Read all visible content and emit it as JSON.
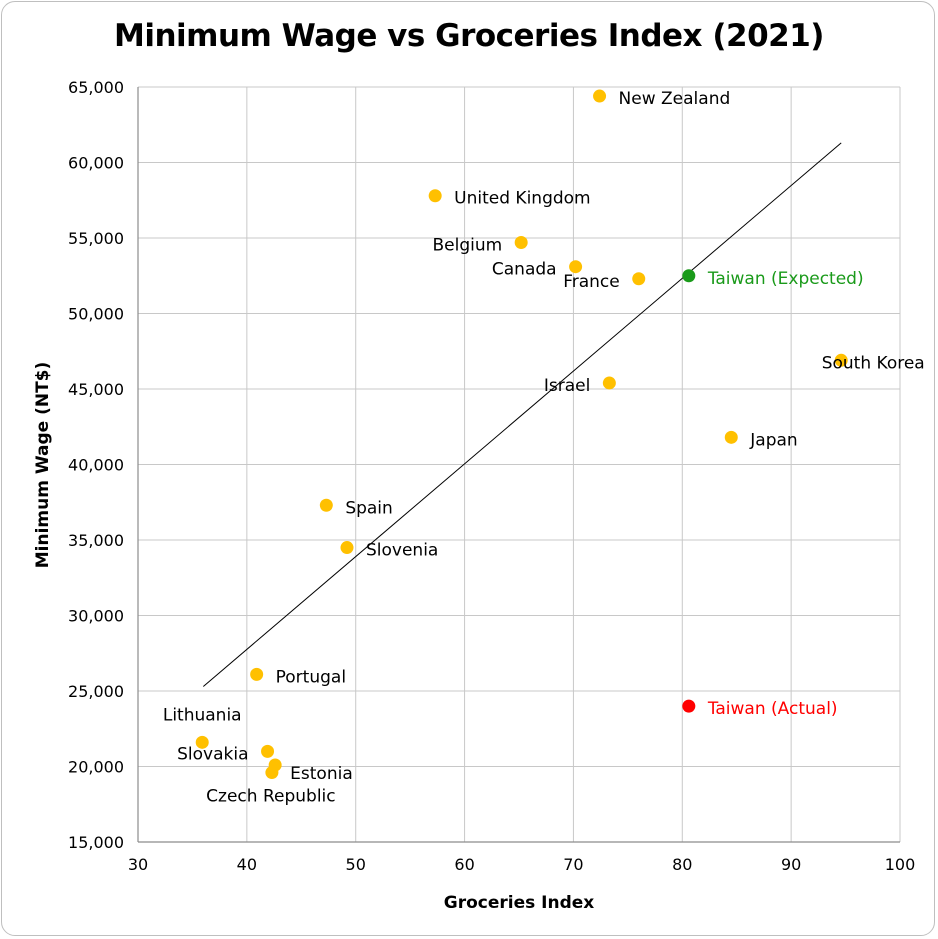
{
  "chart_data": {
    "type": "scatter",
    "title": "Minimum Wage vs Groceries Index (2021)",
    "xlabel": "Groceries Index",
    "ylabel": "Minimum Wage (NT$)",
    "xlim": [
      30,
      100
    ],
    "ylim": [
      15000,
      65000
    ],
    "xticks": [
      30,
      40,
      50,
      60,
      70,
      80,
      90,
      100
    ],
    "yticks": [
      15000,
      20000,
      25000,
      30000,
      35000,
      40000,
      45000,
      50000,
      55000,
      60000,
      65000
    ],
    "ytick_labels": [
      "15,000",
      "20,000",
      "25,000",
      "30,000",
      "35,000",
      "40,000",
      "45,000",
      "50,000",
      "55,000",
      "60,000",
      "65,000"
    ],
    "grid": true,
    "trendline": {
      "x": [
        36,
        94.6
      ],
      "y": [
        25300,
        61300
      ]
    },
    "colors": {
      "default": "#FFC000",
      "expected": "#1A9A1A",
      "actual": "#FF0000",
      "gridline": "#c8c8c8",
      "axis": "#8c8c8c"
    },
    "points": [
      {
        "name": "New Zealand",
        "x": 72.4,
        "y": 64400,
        "color": "#FFC000",
        "label_color": "#000000",
        "label_side": "right"
      },
      {
        "name": "United Kingdom",
        "x": 57.3,
        "y": 57800,
        "color": "#FFC000",
        "label_color": "#000000",
        "label_side": "right"
      },
      {
        "name": "Belgium",
        "x": 65.2,
        "y": 54700,
        "color": "#FFC000",
        "label_color": "#000000",
        "label_side": "left"
      },
      {
        "name": "Canada",
        "x": 70.2,
        "y": 53100,
        "color": "#FFC000",
        "label_color": "#000000",
        "label_side": "left"
      },
      {
        "name": "France",
        "x": 76.0,
        "y": 52300,
        "color": "#FFC000",
        "label_color": "#000000",
        "label_side": "left"
      },
      {
        "name": "Taiwan (Expected)",
        "x": 80.6,
        "y": 52500,
        "color": "#1A9A1A",
        "label_color": "#1A9A1A",
        "label_side": "right"
      },
      {
        "name": "South Korea",
        "x": 94.6,
        "y": 46900,
        "color": "#FFC000",
        "label_color": "#000000",
        "label_side": "center"
      },
      {
        "name": "Israel",
        "x": 73.3,
        "y": 45400,
        "color": "#FFC000",
        "label_color": "#000000",
        "label_side": "left"
      },
      {
        "name": "Japan",
        "x": 84.5,
        "y": 41800,
        "color": "#FFC000",
        "label_color": "#000000",
        "label_side": "right"
      },
      {
        "name": "Spain",
        "x": 47.3,
        "y": 37300,
        "color": "#FFC000",
        "label_color": "#000000",
        "label_side": "right"
      },
      {
        "name": "Slovenia",
        "x": 49.2,
        "y": 34500,
        "color": "#FFC000",
        "label_color": "#000000",
        "label_side": "right"
      },
      {
        "name": "Portugal",
        "x": 40.9,
        "y": 26100,
        "color": "#FFC000",
        "label_color": "#000000",
        "label_side": "right"
      },
      {
        "name": "Taiwan (Actual)",
        "x": 80.6,
        "y": 24000,
        "color": "#FF0000",
        "label_color": "#FF0000",
        "label_side": "right"
      },
      {
        "name": "Lithuania",
        "x": 35.9,
        "y": 21600,
        "color": "#FFC000",
        "label_color": "#000000",
        "label_side": "above"
      },
      {
        "name": "Slovakia",
        "x": 41.9,
        "y": 21000,
        "color": "#FFC000",
        "label_color": "#000000",
        "label_side": "left"
      },
      {
        "name": "Estonia",
        "x": 42.6,
        "y": 20100,
        "color": "#FFC000",
        "label_color": "#000000",
        "label_side": "belowright"
      },
      {
        "name": "Czech Republic",
        "x": 42.3,
        "y": 19600,
        "color": "#FFC000",
        "label_color": "#000000",
        "label_side": "below"
      }
    ]
  }
}
